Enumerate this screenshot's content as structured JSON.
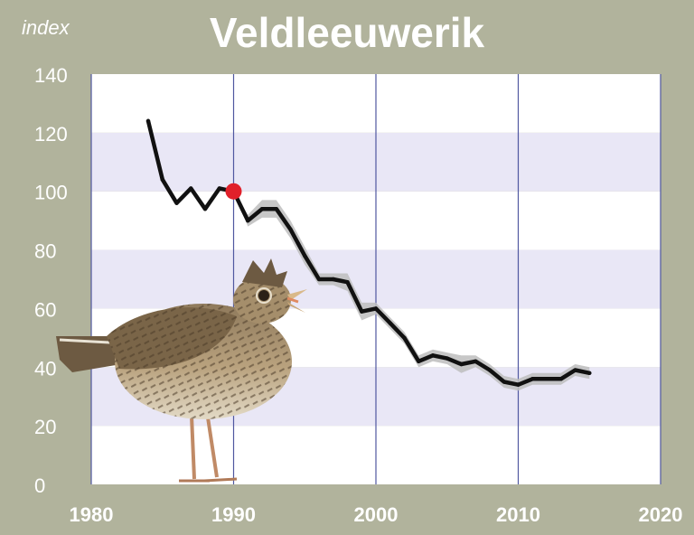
{
  "chart_data": {
    "type": "line",
    "title": "Veldleeuwerik",
    "ylabel": "index",
    "xlabel": "",
    "xlim": [
      1980,
      2020
    ],
    "ylim": [
      0,
      140
    ],
    "x_ticks": [
      1980,
      1990,
      2000,
      2010,
      2020
    ],
    "y_ticks": [
      0,
      20,
      40,
      60,
      80,
      100,
      120,
      140
    ],
    "grid": "horizontal bands every 20, vertical lines every 10 years",
    "series": [
      {
        "x": [
          1984,
          1985,
          1986,
          1987,
          1988,
          1989,
          1990,
          1991,
          1992,
          1993,
          1994,
          1995,
          1996,
          1997,
          1998,
          1999,
          2000,
          2001,
          2002,
          2003,
          2004,
          2005,
          2006,
          2007,
          2008,
          2009,
          2010,
          2011,
          2012,
          2013,
          2014,
          2015
        ],
        "y": [
          124,
          104,
          96,
          101,
          94,
          101,
          100,
          90,
          94,
          94,
          87,
          78,
          70,
          70,
          69,
          59,
          60,
          55,
          50,
          42,
          44,
          43,
          41,
          42,
          39,
          35,
          34,
          36,
          36,
          36,
          39,
          38
        ]
      }
    ],
    "band": {
      "x": [
        1990,
        1991,
        1992,
        1993,
        1994,
        1995,
        1996,
        1997,
        1998,
        1999,
        2000,
        2001,
        2002,
        2003,
        2004,
        2005,
        2006,
        2007,
        2008,
        2009,
        2010,
        2011,
        2012,
        2013,
        2014,
        2015
      ],
      "low": [
        100,
        88,
        91,
        91,
        84,
        75,
        68,
        68,
        66,
        56,
        58,
        53,
        48,
        40,
        42,
        41,
        38,
        40,
        37,
        33,
        32,
        34,
        34,
        34,
        37,
        36
      ],
      "high": [
        100,
        92,
        97,
        97,
        90,
        81,
        72,
        72,
        72,
        62,
        62,
        57,
        52,
        44,
        46,
        45,
        44,
        44,
        41,
        37,
        36,
        38,
        38,
        38,
        41,
        40
      ]
    },
    "reference_point": {
      "x": 1990,
      "y": 100,
      "color": "#e0202a"
    },
    "colors": {
      "background": "#b1b39c",
      "plot_white": "#ffffff",
      "plot_band": "#e9e7f6",
      "gridline": "#5058a0",
      "line": "#111111",
      "confidence_band": "#bdbdbd"
    },
    "image": "skylark-photo"
  }
}
